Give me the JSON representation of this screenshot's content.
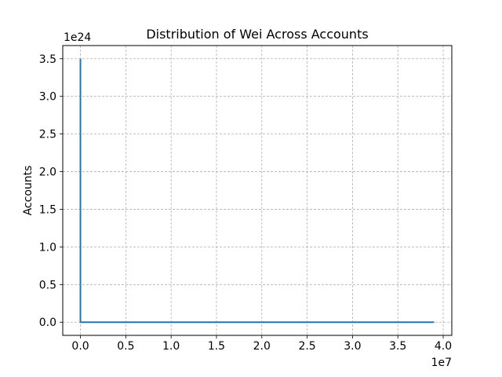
{
  "chart_data": {
    "type": "line",
    "title": "Distribution of Wei Across Accounts",
    "xlabel": "",
    "ylabel": "Accounts",
    "x_offset_label": "1e7",
    "y_offset_label": "1e24",
    "xlim": [
      -1950000,
      40950000
    ],
    "ylim": [
      -175000000000000000000000,
      3675000000000000000000000
    ],
    "x_ticks": [
      0,
      5000000,
      10000000,
      15000000,
      20000000,
      25000000,
      30000000,
      35000000,
      40000000
    ],
    "x_tick_labels": [
      "0.0",
      "0.5",
      "1.0",
      "1.5",
      "2.0",
      "2.5",
      "3.0",
      "3.5",
      "4.0"
    ],
    "y_ticks": [
      0,
      500000000000000000000000,
      1000000000000000000000000,
      1500000000000000000000000,
      2000000000000000000000000,
      2500000000000000000000000,
      3000000000000000000000000,
      3500000000000000000000000
    ],
    "y_tick_labels": [
      "0.0",
      "0.5",
      "1.0",
      "1.5",
      "2.0",
      "2.5",
      "3.0",
      "3.5"
    ],
    "grid": true,
    "grid_style": "dashed",
    "series": [
      {
        "color": "#1f77b4",
        "x": [
          0,
          0,
          1000000,
          39000000
        ],
        "y": [
          3500000000000000000000000,
          0,
          0,
          0
        ]
      }
    ]
  }
}
